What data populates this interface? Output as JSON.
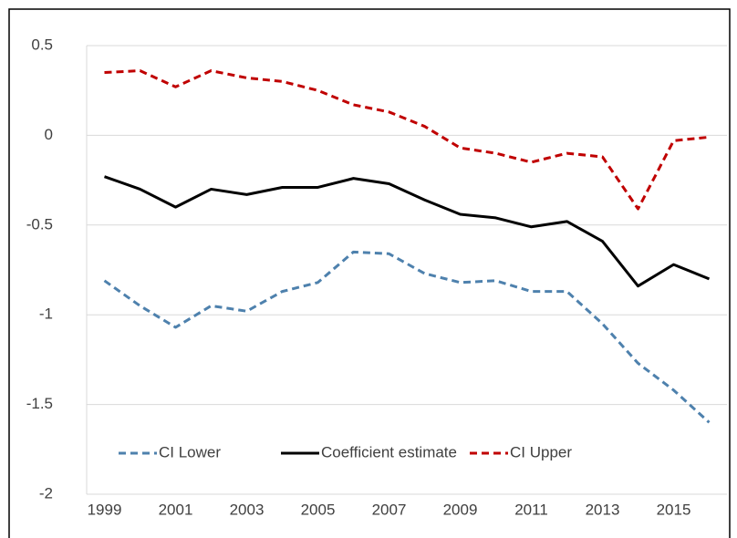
{
  "chart_data": {
    "type": "line",
    "categories": [
      "1999",
      null,
      "2001",
      null,
      "2003",
      null,
      "2005",
      null,
      "2007",
      null,
      "2009",
      null,
      "2011",
      null,
      "2013",
      null,
      "2015",
      null
    ],
    "series": [
      {
        "name": "CI Lower",
        "color": "#4e81ad",
        "line_style": "dashed",
        "values": [
          -0.81,
          -0.95,
          -1.07,
          -0.95,
          -0.98,
          -0.87,
          -0.82,
          -0.65,
          -0.66,
          -0.77,
          -0.82,
          -0.81,
          -0.87,
          -0.87,
          -1.05,
          -1.27,
          -1.42,
          -1.6
        ]
      },
      {
        "name": "Coefficient estimate",
        "color": "#000000",
        "line_style": "solid",
        "values": [
          -0.23,
          -0.3,
          -0.4,
          -0.3,
          -0.33,
          -0.29,
          -0.29,
          -0.24,
          -0.27,
          -0.36,
          -0.44,
          -0.46,
          -0.51,
          -0.48,
          -0.59,
          -0.84,
          -0.72,
          -0.8
        ]
      },
      {
        "name": "CI Upper",
        "color": "#c00000",
        "line_style": "dashed",
        "values": [
          0.35,
          0.36,
          0.27,
          0.36,
          0.32,
          0.3,
          0.25,
          0.17,
          0.13,
          0.05,
          -0.07,
          -0.1,
          -0.15,
          -0.1,
          -0.12,
          -0.41,
          -0.03,
          -0.01
        ]
      }
    ],
    "ylim": [
      -2,
      0.5
    ],
    "yticks": [
      0.5,
      0,
      -0.5,
      -1,
      -1.5,
      -2
    ],
    "grid": true,
    "legend": "bottom"
  }
}
